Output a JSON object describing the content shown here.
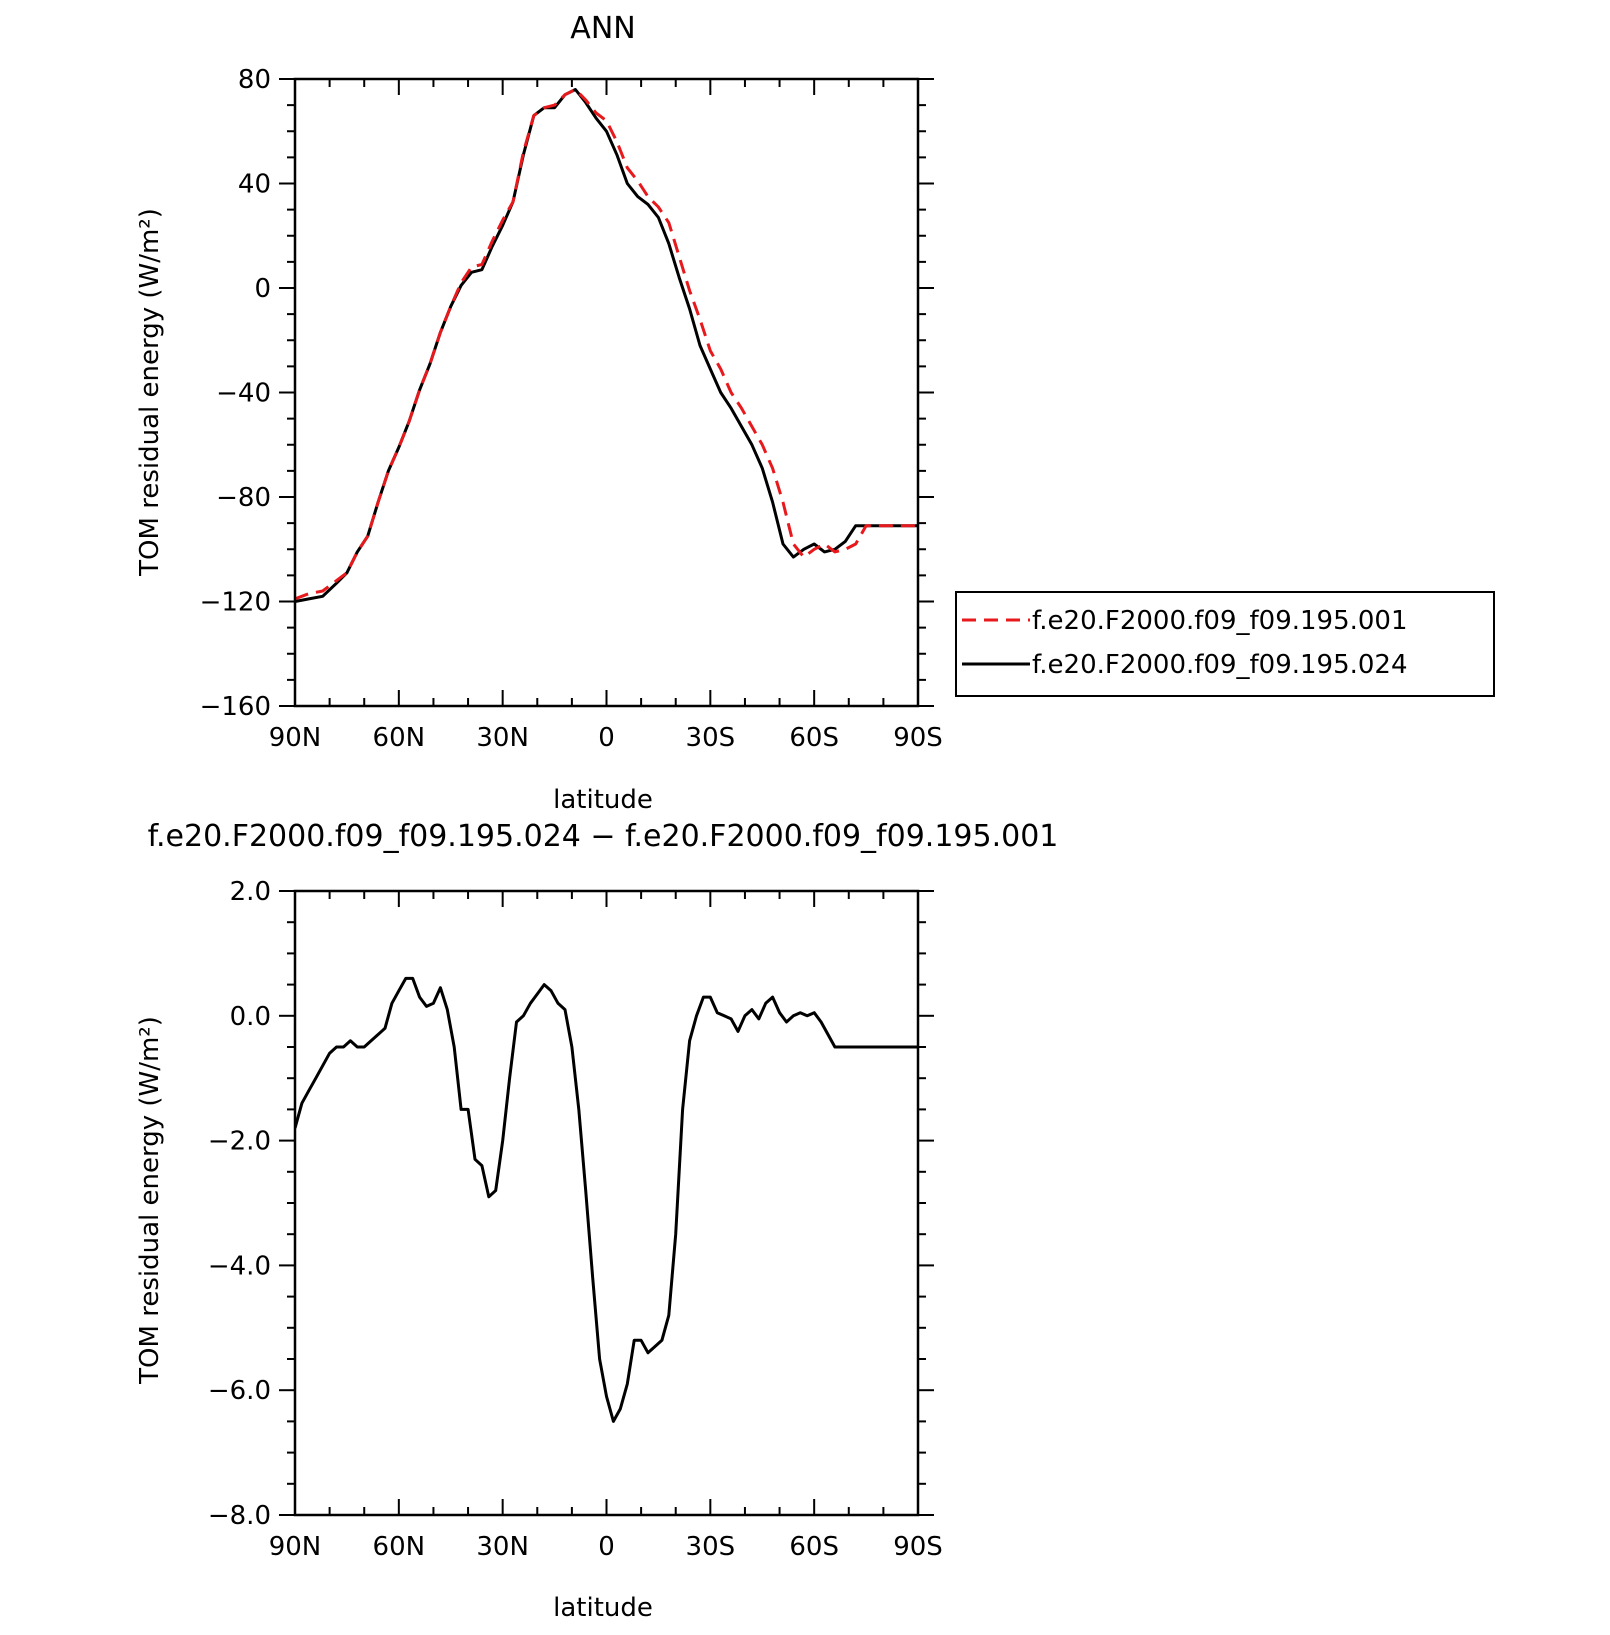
{
  "chart_data": [
    {
      "type": "line",
      "title": "ANN",
      "xlabel": "latitude",
      "ylabel": "TOM residual energy (W/m²)",
      "xlim": [
        90,
        -90
      ],
      "ylim": [
        -160,
        80
      ],
      "yticks": [
        80,
        40,
        0,
        -40,
        -80,
        -120,
        -160
      ],
      "ytick_labels": [
        "80",
        "40",
        "0",
        "−40",
        "−80",
        "−120",
        "−160"
      ],
      "xticks": [
        90,
        60,
        30,
        0,
        -30,
        -60,
        -90
      ],
      "xtick_labels": [
        "90N",
        "60N",
        "30N",
        "0",
        "30S",
        "60S",
        "90S"
      ],
      "grid": false,
      "legend": "outside-right",
      "series": [
        {
          "name": "f.e20.F2000.f09_f09.195.001",
          "color": "#e8191c",
          "dash": "dashed",
          "x": [
            90,
            86,
            82,
            78,
            75,
            72,
            69,
            66,
            63,
            60,
            57,
            54,
            51,
            48,
            45,
            42,
            39,
            36,
            33,
            30,
            27,
            24,
            21,
            18,
            15,
            12,
            9,
            6,
            3,
            0,
            -3,
            -6,
            -9,
            -12,
            -15,
            -18,
            -21,
            -24,
            -27,
            -30,
            -33,
            -36,
            -39,
            -42,
            -45,
            -48,
            -51,
            -54,
            -57,
            -60,
            -63,
            -66,
            -69,
            -72,
            -75,
            -78,
            -81,
            -84,
            -87,
            -90
          ],
          "y": [
            -119,
            -117,
            -116,
            -112,
            -109,
            -101,
            -95,
            -82,
            -70,
            -61,
            -51,
            -39,
            -29,
            -17,
            -7,
            2,
            8,
            9,
            18,
            26,
            33,
            52,
            66,
            69,
            70,
            74,
            76,
            72,
            67,
            64,
            56,
            46,
            41,
            35,
            31,
            25,
            12,
            -1,
            -12,
            -24,
            -31,
            -40,
            -46,
            -53,
            -60,
            -69,
            -82,
            -98,
            -103,
            -100,
            -98,
            -101,
            -100,
            -98,
            -91,
            -91,
            -91,
            -91,
            -91,
            -91
          ]
        },
        {
          "name": "f.e20.F2000.f09_f09.195.024",
          "color": "#000000",
          "dash": "solid",
          "x": [
            90,
            86,
            82,
            78,
            75,
            72,
            69,
            66,
            63,
            60,
            57,
            54,
            51,
            48,
            45,
            42,
            39,
            36,
            33,
            30,
            27,
            24,
            21,
            18,
            15,
            12,
            9,
            6,
            3,
            0,
            -3,
            -6,
            -9,
            -12,
            -15,
            -18,
            -21,
            -24,
            -27,
            -30,
            -33,
            -36,
            -39,
            -42,
            -45,
            -48,
            -51,
            -54,
            -57,
            -60,
            -63,
            -66,
            -69,
            -72,
            -75,
            -78,
            -81,
            -84,
            -87,
            -90
          ],
          "y": [
            -120,
            -119,
            -118,
            -113,
            -109,
            -101,
            -95,
            -82,
            -70,
            -61,
            -51,
            -39,
            -29,
            -17,
            -7,
            1,
            6,
            7,
            16,
            24,
            33,
            51,
            66,
            69,
            69,
            74,
            76,
            71,
            65,
            60,
            51,
            40,
            35,
            32,
            27,
            17,
            4,
            -8,
            -22,
            -31,
            -40,
            -46,
            -53,
            -60,
            -69,
            -82,
            -98,
            -103,
            -100,
            -98,
            -101,
            -100,
            -97,
            -91,
            -91,
            -91,
            -91,
            -91,
            -91,
            -91
          ]
        }
      ]
    },
    {
      "type": "line",
      "title": "f.e20.F2000.f09_f09.195.024 − f.e20.F2000.f09_f09.195.001",
      "xlabel": "latitude",
      "ylabel": "TOM residual energy (W/m²)",
      "xlim": [
        90,
        -90
      ],
      "ylim": [
        -8,
        2
      ],
      "yticks": [
        2,
        0,
        -2,
        -4,
        -6,
        -8
      ],
      "ytick_labels": [
        "2.0",
        "0.0",
        "−2.0",
        "−4.0",
        "−6.0",
        "−8.0"
      ],
      "xticks": [
        90,
        60,
        30,
        0,
        -30,
        -60,
        -90
      ],
      "xtick_labels": [
        "90N",
        "60N",
        "30N",
        "0",
        "30S",
        "60S",
        "90S"
      ],
      "grid": false,
      "series": [
        {
          "name": "",
          "color": "#000000",
          "dash": "solid",
          "x": [
            90,
            88,
            86,
            84,
            82,
            80,
            78,
            76,
            74,
            72,
            70,
            68,
            66,
            64,
            62,
            60,
            58,
            56,
            54,
            52,
            50,
            48,
            46,
            44,
            42,
            40,
            38,
            36,
            34,
            32,
            30,
            28,
            26,
            24,
            22,
            20,
            18,
            16,
            14,
            12,
            10,
            8,
            6,
            4,
            2,
            0,
            -2,
            -4,
            -6,
            -8,
            -10,
            -12,
            -14,
            -16,
            -18,
            -20,
            -22,
            -24,
            -26,
            -28,
            -30,
            -32,
            -34,
            -36,
            -38,
            -40,
            -42,
            -44,
            -46,
            -48,
            -50,
            -52,
            -54,
            -56,
            -58,
            -60,
            -62,
            -64,
            -66,
            -68,
            -70,
            -72,
            -74,
            -76,
            -78,
            -80,
            -82,
            -84,
            -86,
            -88,
            -90
          ],
          "y": [
            -1.8,
            -1.4,
            -1.2,
            -1.0,
            -0.8,
            -0.6,
            -0.5,
            -0.5,
            -0.4,
            -0.5,
            -0.5,
            -0.4,
            -0.3,
            -0.2,
            0.2,
            0.4,
            0.6,
            0.6,
            0.3,
            0.15,
            0.2,
            0.45,
            0.1,
            -0.5,
            -1.5,
            -1.5,
            -2.3,
            -2.4,
            -2.9,
            -2.8,
            -2.0,
            -1.0,
            -0.1,
            0.0,
            0.2,
            0.35,
            0.5,
            0.4,
            0.2,
            0.1,
            -0.5,
            -1.5,
            -2.8,
            -4.2,
            -5.5,
            -6.1,
            -6.5,
            -6.3,
            -5.9,
            -5.2,
            -5.2,
            -5.4,
            -5.3,
            -5.2,
            -4.8,
            -3.5,
            -1.5,
            -0.4,
            0.0,
            0.3,
            0.3,
            0.05,
            0.0,
            -0.05,
            -0.25,
            0.0,
            0.1,
            -0.05,
            0.2,
            0.3,
            0.05,
            -0.1,
            0.0,
            0.05,
            0.0,
            0.05,
            -0.1,
            -0.3,
            -0.5,
            -0.5,
            -0.5,
            -0.5,
            -0.5,
            -0.5,
            -0.5,
            -0.5,
            -0.5,
            -0.5,
            -0.5,
            -0.5,
            -0.5
          ]
        }
      ]
    }
  ]
}
